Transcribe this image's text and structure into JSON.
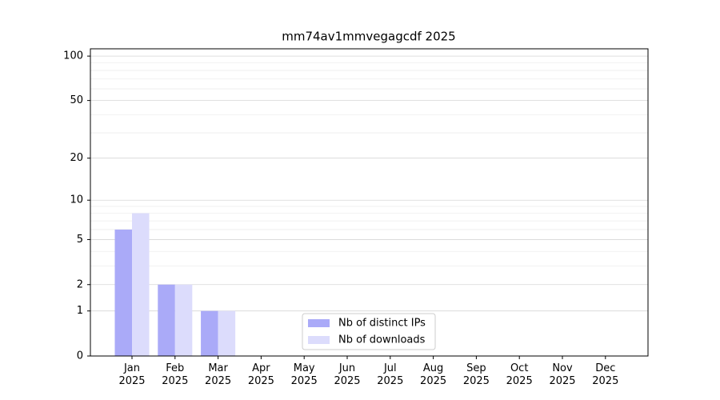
{
  "chart_data": {
    "type": "bar",
    "title": "mm74av1mmvegagcdf 2025",
    "categories": [
      "Jan\n2025",
      "Feb\n2025",
      "Mar\n2025",
      "Apr\n2025",
      "May\n2025",
      "Jun\n2025",
      "Jul\n2025",
      "Aug\n2025",
      "Sep\n2025",
      "Oct\n2025",
      "Nov\n2025",
      "Dec\n2025"
    ],
    "series": [
      {
        "name": "Nb of distinct IPs",
        "color": "#aaaaf8",
        "values": [
          6,
          2,
          1,
          0,
          0,
          0,
          0,
          0,
          0,
          0,
          0,
          0
        ]
      },
      {
        "name": "Nb of downloads",
        "color": "#dcdcfc",
        "values": [
          8,
          2,
          1,
          0,
          0,
          0,
          0,
          0,
          0,
          0,
          0,
          0
        ]
      }
    ],
    "yscale": "log1p",
    "ylim": [
      0,
      112
    ],
    "yticks": [
      0,
      1,
      2,
      5,
      10,
      20,
      50,
      100
    ],
    "grid": true,
    "legend": "lower center"
  }
}
